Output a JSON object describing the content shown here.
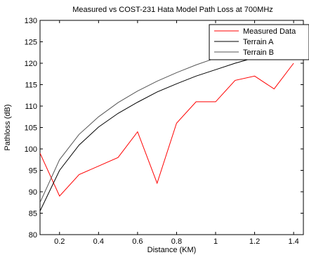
{
  "chart_data": {
    "type": "line",
    "title": "Measured vs COST-231 Hata Model Path Loss at 700MHz",
    "xlabel": "Distance (KM)",
    "ylabel": "Pathloss (dB)",
    "xlim": [
      0.1,
      1.45
    ],
    "ylim": [
      80,
      130
    ],
    "xticks": [
      0.2,
      0.4,
      0.6,
      0.8,
      1,
      1.2,
      1.4
    ],
    "yticks": [
      80,
      85,
      90,
      95,
      100,
      105,
      110,
      115,
      120,
      125,
      130
    ],
    "xtick_labels": [
      "0.2",
      "0.4",
      "0.6",
      "0.8",
      "1",
      "1.2",
      "1.4"
    ],
    "ytick_labels": [
      "80",
      "85",
      "90",
      "95",
      "100",
      "105",
      "110",
      "115",
      "120",
      "125",
      "130"
    ],
    "grid": false,
    "legend_position": "top-right",
    "series": [
      {
        "name": "Measured Data",
        "color": "#ff0000",
        "x": [
          0.1,
          0.2,
          0.3,
          0.4,
          0.5,
          0.6,
          0.7,
          0.8,
          0.9,
          1.0,
          1.1,
          1.2,
          1.3,
          1.4
        ],
        "y": [
          99,
          89,
          94,
          96,
          98,
          104,
          92,
          106,
          111,
          111,
          116,
          117,
          114,
          120
        ]
      },
      {
        "name": "Terrain A",
        "color": "#000000",
        "x": [
          0.1,
          0.2,
          0.3,
          0.4,
          0.5,
          0.6,
          0.7,
          0.8,
          0.9,
          1.0,
          1.1,
          1.2,
          1.3,
          1.4
        ],
        "y": [
          85.5,
          95,
          100.9,
          105.1,
          108.3,
          110.9,
          113.3,
          115.2,
          117.0,
          118.5,
          120.0,
          121.3,
          122.5,
          123.7
        ]
      },
      {
        "name": "Terrain B",
        "color": "#555555",
        "x": [
          0.1,
          0.2,
          0.3,
          0.4,
          0.5,
          0.6,
          0.7,
          0.8,
          0.9,
          1.0,
          1.1,
          1.2,
          1.3,
          1.4
        ],
        "y": [
          87.5,
          97.5,
          103.4,
          107.5,
          110.8,
          113.5,
          115.8,
          117.8,
          119.6,
          121.2,
          122.7,
          124.0,
          125.3,
          126.5
        ]
      }
    ]
  }
}
